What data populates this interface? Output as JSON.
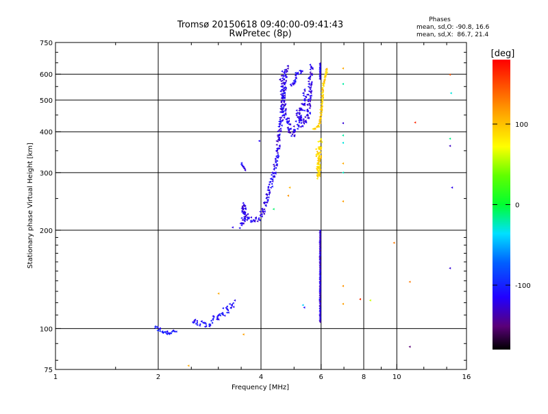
{
  "chart_data": {
    "type": "scatter",
    "title": "Tromsø 20150618 09:40:00-09:41:43",
    "subtitle": "RwPretec (8p)",
    "stats": {
      "heading": "Phases",
      "line_o": "mean, sd,O: -90.8, 16.6",
      "line_x": "mean, sd,X:  86.7, 21.4"
    },
    "xlabel": "Frequency [MHz]",
    "ylabel": "Stationary phase Virtual Height [km]",
    "xscale": "log",
    "yscale": "log",
    "xlim": [
      1,
      16
    ],
    "ylim": [
      75,
      750
    ],
    "x_ticks": [
      {
        "v": 1,
        "label": "1"
      },
      {
        "v": 2,
        "label": "2"
      },
      {
        "v": 4,
        "label": "4"
      },
      {
        "v": 6,
        "label": "6"
      },
      {
        "v": 8,
        "label": "8"
      },
      {
        "v": 10,
        "label": "10"
      },
      {
        "v": 16,
        "label": "16"
      }
    ],
    "y_ticks": [
      {
        "v": 75,
        "label": "75"
      },
      {
        "v": 100,
        "label": "100"
      },
      {
        "v": 200,
        "label": "200"
      },
      {
        "v": 300,
        "label": "300"
      },
      {
        "v": 400,
        "label": "400"
      },
      {
        "v": 500,
        "label": "500"
      },
      {
        "v": 600,
        "label": "600"
      },
      {
        "v": 750,
        "label": "750"
      }
    ],
    "x_grid": [
      2,
      4,
      6,
      8,
      10
    ],
    "y_grid": [
      100,
      200,
      300,
      400,
      500,
      600
    ],
    "colorbar": {
      "title": "[deg]",
      "range": [
        -180,
        180
      ],
      "ticks": [
        {
          "v": 100,
          "label": "100"
        },
        {
          "v": 0,
          "label": "0"
        },
        {
          "v": -100,
          "label": "-100"
        }
      ]
    },
    "segments": [
      {
        "name": "E-layer",
        "phase": -105,
        "jitter": 0.03,
        "points": [
          [
            1.95,
            101
          ],
          [
            2.05,
            98
          ],
          [
            2.15,
            97
          ],
          [
            2.25,
            99
          ]
        ]
      },
      {
        "name": "E-layer-tail",
        "phase": -110,
        "jitter": 0.05,
        "points": [
          [
            2.5,
            104
          ],
          [
            2.8,
            103
          ],
          [
            3.0,
            110
          ],
          [
            3.2,
            115
          ],
          [
            3.35,
            120
          ]
        ]
      },
      {
        "name": "F-cusp",
        "phase": -118,
        "jitter": 0.04,
        "points": [
          [
            3.5,
            205
          ],
          [
            3.55,
            215
          ],
          [
            3.55,
            240
          ],
          [
            3.62,
            220
          ],
          [
            3.8,
            212
          ],
          [
            4.0,
            220
          ],
          [
            4.15,
            250
          ],
          [
            4.3,
            285
          ],
          [
            4.45,
            330
          ],
          [
            4.5,
            380
          ],
          [
            4.6,
            450
          ],
          [
            4.65,
            520
          ],
          [
            4.7,
            580
          ],
          [
            4.75,
            640
          ]
        ]
      },
      {
        "name": "F2-loop-1",
        "phase": -118,
        "jitter": 0.05,
        "points": [
          [
            4.6,
            600
          ],
          [
            4.65,
            480
          ],
          [
            4.8,
            420
          ],
          [
            4.9,
            395
          ],
          [
            5.0,
            400
          ],
          [
            5.15,
            430
          ],
          [
            5.3,
            480
          ],
          [
            5.4,
            530
          ]
        ]
      },
      {
        "name": "F2-loop-2",
        "phase": -120,
        "jitter": 0.04,
        "points": [
          [
            5.1,
            460
          ],
          [
            5.3,
            420
          ],
          [
            5.5,
            450
          ],
          [
            5.55,
            530
          ],
          [
            5.6,
            640
          ]
        ]
      },
      {
        "name": "O-upper",
        "phase": -112,
        "jitter": 0.03,
        "points": [
          [
            4.9,
            550
          ],
          [
            5.1,
            600
          ],
          [
            5.3,
            620
          ]
        ]
      },
      {
        "name": "X-trace",
        "phase": 95,
        "jitter": 0.02,
        "points": [
          [
            5.7,
            408
          ],
          [
            5.85,
            412
          ],
          [
            5.95,
            430
          ],
          [
            6.0,
            470
          ],
          [
            6.05,
            520
          ],
          [
            6.1,
            570
          ],
          [
            6.25,
            630
          ]
        ]
      },
      {
        "name": "x-scatter",
        "phase": 90,
        "jitter": 0.04,
        "points": [
          [
            5.85,
            350
          ],
          [
            5.9,
            290
          ],
          [
            5.95,
            380
          ]
        ]
      },
      {
        "name": "vertical-6MHz",
        "phase": -125,
        "jitter": 0.005,
        "points": [
          [
            5.95,
            105
          ],
          [
            5.95,
            125
          ],
          [
            5.95,
            150
          ],
          [
            5.95,
            175
          ],
          [
            5.95,
            200
          ]
        ]
      },
      {
        "name": "vertical-6MHz-top",
        "phase": -115,
        "jitter": 0.005,
        "points": [
          [
            5.95,
            580
          ],
          [
            5.95,
            620
          ],
          [
            5.95,
            650
          ]
        ]
      },
      {
        "name": "f-spread-1",
        "phase": -120,
        "jitter": 0.01,
        "points": [
          [
            3.5,
            320
          ],
          [
            3.6,
            305
          ]
        ]
      }
    ],
    "scatter_points": [
      {
        "x": 3.3,
        "y": 204,
        "phase": -120
      },
      {
        "x": 3.0,
        "y": 128,
        "phase": 110
      },
      {
        "x": 3.55,
        "y": 96,
        "phase": 115
      },
      {
        "x": 2.45,
        "y": 77,
        "phase": 110
      },
      {
        "x": 4.35,
        "y": 232,
        "phase": -10
      },
      {
        "x": 4.85,
        "y": 270,
        "phase": 105
      },
      {
        "x": 4.8,
        "y": 255,
        "phase": 120
      },
      {
        "x": 5.3,
        "y": 118,
        "phase": -40
      },
      {
        "x": 5.35,
        "y": 116,
        "phase": -110
      },
      {
        "x": 3.95,
        "y": 375,
        "phase": -115
      },
      {
        "x": 6.95,
        "y": 625,
        "phase": 110
      },
      {
        "x": 6.95,
        "y": 560,
        "phase": -20
      },
      {
        "x": 6.95,
        "y": 425,
        "phase": -125
      },
      {
        "x": 6.95,
        "y": 390,
        "phase": -20
      },
      {
        "x": 6.95,
        "y": 370,
        "phase": -30
      },
      {
        "x": 6.95,
        "y": 320,
        "phase": 110
      },
      {
        "x": 6.95,
        "y": 300,
        "phase": -25
      },
      {
        "x": 6.95,
        "y": 245,
        "phase": 115
      },
      {
        "x": 6.95,
        "y": 135,
        "phase": 120
      },
      {
        "x": 6.95,
        "y": 119,
        "phase": 115
      },
      {
        "x": 7.8,
        "y": 123,
        "phase": 160
      },
      {
        "x": 8.35,
        "y": 122,
        "phase": 60
      },
      {
        "x": 9.8,
        "y": 183,
        "phase": 130
      },
      {
        "x": 10.9,
        "y": 139,
        "phase": 130
      },
      {
        "x": 11.3,
        "y": 427,
        "phase": 165
      },
      {
        "x": 10.9,
        "y": 88,
        "phase": -150
      },
      {
        "x": 14.3,
        "y": 598,
        "phase": 145
      },
      {
        "x": 14.4,
        "y": 525,
        "phase": -30
      },
      {
        "x": 14.3,
        "y": 381,
        "phase": -15
      },
      {
        "x": 14.3,
        "y": 362,
        "phase": -130
      },
      {
        "x": 14.5,
        "y": 270,
        "phase": -120
      },
      {
        "x": 14.3,
        "y": 153,
        "phase": -125
      }
    ]
  }
}
